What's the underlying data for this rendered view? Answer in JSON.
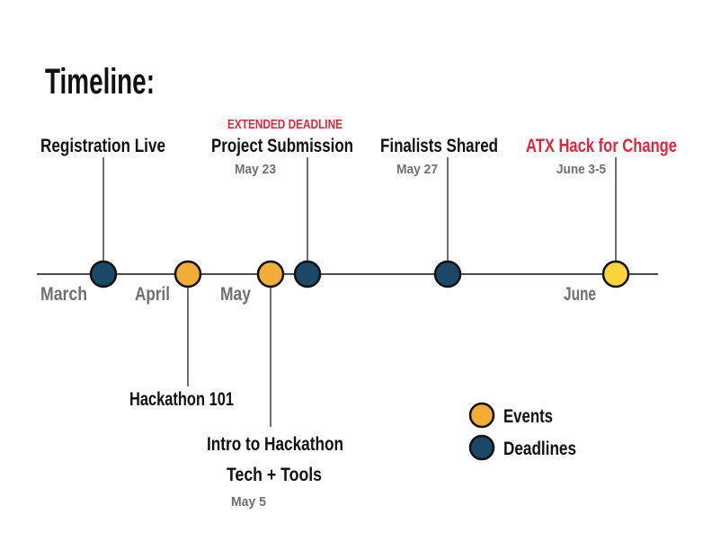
{
  "title": "Timeline:",
  "colors": {
    "event": "#f1ad37",
    "deadline": "#1c4868",
    "highlight": "#fcd43b",
    "accent_red": "#e0263b",
    "muted": "#6f706c"
  },
  "months": [
    "March",
    "April",
    "May",
    "June"
  ],
  "milestones": {
    "registration": {
      "label": "Registration Live"
    },
    "hackathon101": {
      "label": "Hackathon 101"
    },
    "intro": {
      "label_line1": "Intro to Hackathon",
      "label_line2": "Tech + Tools",
      "date": "May 5"
    },
    "submission": {
      "note": "EXTENDED DEADLINE",
      "label": "Project Submission",
      "date": "May 23"
    },
    "finalists": {
      "label": "Finalists Shared",
      "date": "May 27"
    },
    "atx": {
      "label": "ATX Hack for Change",
      "date": "June 3-5"
    }
  },
  "legend": {
    "events": "Events",
    "deadlines": "Deadlines"
  }
}
